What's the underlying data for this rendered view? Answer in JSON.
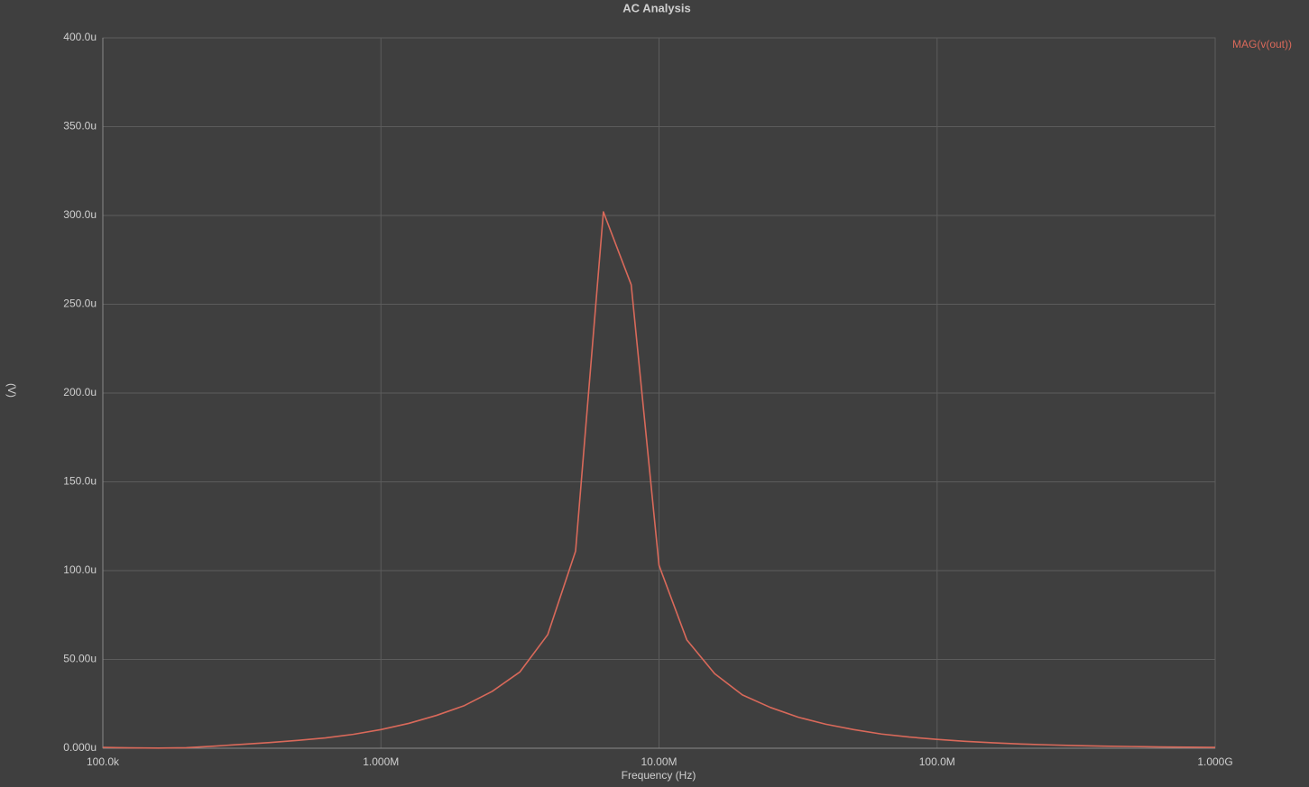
{
  "chart_data": {
    "type": "line",
    "title": "AC Analysis",
    "x_label": "Frequency (Hz)",
    "y_label": "(V)",
    "x_log": true,
    "grid": true,
    "legend": "top-right",
    "xlim": [
      100000,
      1000000000
    ],
    "xticks": [
      {
        "value": 100000,
        "label": "100.0k"
      },
      {
        "value": 1000000,
        "label": "1.000M"
      },
      {
        "value": 10000000,
        "label": "10.00M"
      },
      {
        "value": 100000000,
        "label": "100.0M"
      },
      {
        "value": 1000000000,
        "label": "1.000G"
      }
    ],
    "ylim": [
      0,
      0.0004
    ],
    "yticks": [
      {
        "value": 0,
        "label": "0.000u"
      },
      {
        "value": 5e-05,
        "label": "50.00u"
      },
      {
        "value": 0.0001,
        "label": "100.0u"
      },
      {
        "value": 0.00015,
        "label": "150.0u"
      },
      {
        "value": 0.0002,
        "label": "200.0u"
      },
      {
        "value": 0.00025,
        "label": "250.0u"
      },
      {
        "value": 0.0003,
        "label": "300.0u"
      },
      {
        "value": 0.00035,
        "label": "350.0u"
      },
      {
        "value": 0.0004,
        "label": "400.0u"
      }
    ],
    "x": [
      100000,
      125893,
      158489,
      199526,
      251189,
      316228,
      398107,
      501187,
      630957,
      794328,
      1000000,
      1258925,
      1584893,
      1995262,
      2511886,
      3162278,
      3981072,
      5011872,
      6309573,
      7943282,
      10000000,
      12589254,
      15848932,
      19952623,
      25118864,
      31622777,
      39810717,
      50118723,
      63095734,
      79432823,
      100000000,
      125892541,
      158489319,
      199526231,
      251188643,
      316227766,
      398107171,
      501187234,
      630957344,
      794328235,
      1000000000
    ],
    "series": [
      {
        "name": "MAG(v(out))",
        "color": "#d9695a",
        "values": [
          5e-07,
          2e-07,
          1e-07,
          3e-07,
          1.2e-06,
          2.2e-06,
          3.2e-06,
          4.4e-06,
          5.8e-06,
          7.8e-06,
          1.05e-05,
          1.4e-05,
          1.85e-05,
          2.4e-05,
          3.2e-05,
          4.3e-05,
          6.4e-05,
          0.000111,
          0.000302,
          0.000261,
          0.000103,
          6.1e-05,
          4.2e-05,
          3e-05,
          2.3e-05,
          1.75e-05,
          1.35e-05,
          1.05e-05,
          8e-06,
          6.3e-06,
          5e-06,
          3.9e-06,
          3.1e-06,
          2.4e-06,
          1.9e-06,
          1.5e-06,
          1.2e-06,
          9.5e-07,
          7.5e-07,
          6e-07,
          4.7e-07
        ]
      }
    ]
  }
}
